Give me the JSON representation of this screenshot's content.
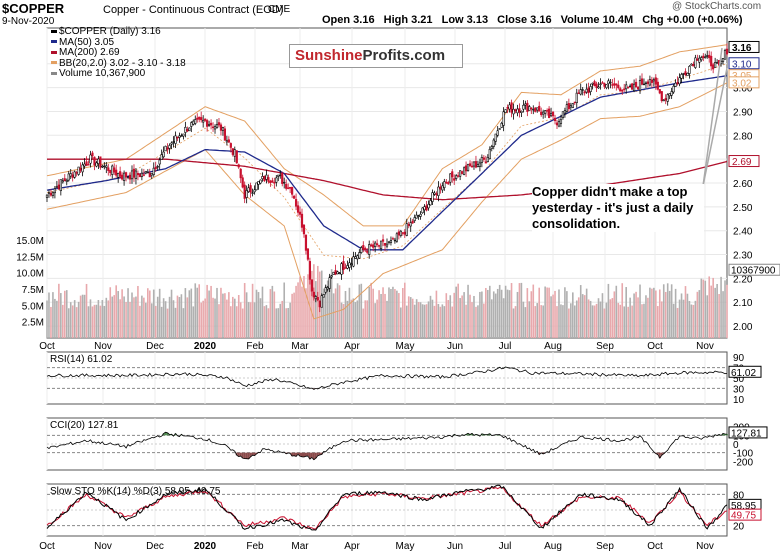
{
  "header": {
    "symbol": "$COPPER",
    "description": "Copper - Continuous Contract (EOD)",
    "exchange": "CME",
    "date": "9-Nov-2020",
    "ohlc": {
      "open": "Open 3.16",
      "high": "High 3.21",
      "low": "Low 3.13",
      "close": "Close 3.16",
      "volume": "Volume 10.4M",
      "change": "Chg +0.00 (+0.06%)"
    },
    "watermark": "@ StockCharts.com"
  },
  "legend": [
    {
      "text": "$COPPER (Daily) 3.16",
      "color": "#000000"
    },
    {
      "text": "MA(50) 3.05",
      "color": "#1f2a8c"
    },
    {
      "text": "MA(200) 2.69",
      "color": "#b0102c"
    },
    {
      "text": "BB(20,2.0) 3.02 - 3.10 - 3.18",
      "color": "#e3a062"
    },
    {
      "text": "Volume 10,367,900",
      "color": "#888888"
    }
  ],
  "logo": {
    "part1": "Sunshine",
    "part2": "Profits.com"
  },
  "annotation": "Copper didn't make a top yesterday - it's just a daily consolidation.",
  "colors": {
    "up": "#000000",
    "down": "#c8102e",
    "ma50": "#1f2a8c",
    "ma200": "#b0102c",
    "bb": "#e3a062",
    "vol_up": "#b0b0b0",
    "vol_down": "#e8a8ac",
    "osc_pos": "#4f8a4f",
    "osc_neg": "#8a4a4a"
  },
  "chart_data": [
    {
      "type": "candlestick",
      "title": "$COPPER (Daily) 3.16",
      "x_ticks": [
        "Oct",
        "Nov",
        "Dec",
        "2020",
        "Feb",
        "Mar",
        "Apr",
        "May",
        "Jun",
        "Jul",
        "Aug",
        "Sep",
        "Oct",
        "Nov"
      ],
      "y_ticks": [
        "3.10",
        "3.00",
        "2.90",
        "2.80",
        "2.70",
        "2.60",
        "2.50",
        "2.40",
        "2.30",
        "2.20",
        "2.10",
        "2.00"
      ],
      "ylim": [
        1.95,
        3.25
      ],
      "price_labels": [
        "3.16",
        "3.10",
        "3.05",
        "3.02",
        "2.69"
      ],
      "price_path": [
        [
          0,
          2.55
        ],
        [
          10,
          2.62
        ],
        [
          22,
          2.7
        ],
        [
          38,
          2.63
        ],
        [
          52,
          2.64
        ],
        [
          62,
          2.76
        ],
        [
          72,
          2.84
        ],
        [
          80,
          2.86
        ],
        [
          88,
          2.83
        ],
        [
          95,
          2.72
        ],
        [
          100,
          2.55
        ],
        [
          110,
          2.62
        ],
        [
          118,
          2.62
        ],
        [
          124,
          2.57
        ],
        [
          130,
          2.4
        ],
        [
          134,
          2.15
        ],
        [
          138,
          2.1
        ],
        [
          145,
          2.22
        ],
        [
          160,
          2.32
        ],
        [
          175,
          2.35
        ],
        [
          190,
          2.48
        ],
        [
          200,
          2.6
        ],
        [
          210,
          2.65
        ],
        [
          222,
          2.7
        ],
        [
          232,
          2.91
        ],
        [
          245,
          2.92
        ],
        [
          258,
          2.86
        ],
        [
          270,
          2.98
        ],
        [
          282,
          3.02
        ],
        [
          295,
          2.99
        ],
        [
          305,
          3.04
        ],
        [
          312,
          2.95
        ],
        [
          322,
          3.06
        ],
        [
          330,
          3.14
        ],
        [
          340,
          3.08
        ],
        [
          344,
          3.16
        ]
      ],
      "ma50_path": [
        [
          0,
          2.57
        ],
        [
          30,
          2.61
        ],
        [
          60,
          2.66
        ],
        [
          80,
          2.74
        ],
        [
          100,
          2.73
        ],
        [
          120,
          2.64
        ],
        [
          140,
          2.42
        ],
        [
          160,
          2.32
        ],
        [
          180,
          2.32
        ],
        [
          200,
          2.48
        ],
        [
          220,
          2.64
        ],
        [
          240,
          2.8
        ],
        [
          260,
          2.88
        ],
        [
          280,
          2.96
        ],
        [
          300,
          2.99
        ],
        [
          320,
          3.02
        ],
        [
          344,
          3.05
        ]
      ],
      "ma200_path": [
        [
          0,
          2.7
        ],
        [
          60,
          2.7
        ],
        [
          100,
          2.67
        ],
        [
          140,
          2.61
        ],
        [
          170,
          2.55
        ],
        [
          200,
          2.53
        ],
        [
          240,
          2.55
        ],
        [
          280,
          2.59
        ],
        [
          320,
          2.64
        ],
        [
          344,
          2.69
        ]
      ],
      "bb_upper_path": [
        [
          0,
          2.63
        ],
        [
          40,
          2.7
        ],
        [
          80,
          2.92
        ],
        [
          100,
          2.86
        ],
        [
          120,
          2.66
        ],
        [
          140,
          2.55
        ],
        [
          160,
          2.42
        ],
        [
          180,
          2.42
        ],
        [
          200,
          2.66
        ],
        [
          220,
          2.76
        ],
        [
          240,
          2.98
        ],
        [
          260,
          2.97
        ],
        [
          280,
          3.07
        ],
        [
          300,
          3.09
        ],
        [
          320,
          3.15
        ],
        [
          344,
          3.18
        ]
      ],
      "bb_lower_path": [
        [
          0,
          2.49
        ],
        [
          40,
          2.56
        ],
        [
          80,
          2.74
        ],
        [
          100,
          2.55
        ],
        [
          120,
          2.42
        ],
        [
          135,
          2.03
        ],
        [
          150,
          2.07
        ],
        [
          170,
          2.22
        ],
        [
          200,
          2.32
        ],
        [
          220,
          2.52
        ],
        [
          240,
          2.7
        ],
        [
          260,
          2.78
        ],
        [
          280,
          2.87
        ],
        [
          300,
          2.88
        ],
        [
          320,
          2.92
        ],
        [
          344,
          3.02
        ]
      ],
      "volume_ticks": [
        "15.0M",
        "12.5M",
        "10.0M",
        "7.5M",
        "5.0M",
        "2.5M"
      ],
      "volume_last": "10367900"
    },
    {
      "type": "line",
      "title": "RSI(14) 61.02",
      "ylim": [
        0,
        100
      ],
      "y_ticks": [
        "90",
        "70",
        "50",
        "30",
        "10"
      ],
      "reference_lines": [
        70,
        30
      ],
      "last_value": "61.02",
      "path": [
        [
          0,
          55
        ],
        [
          40,
          55
        ],
        [
          70,
          58
        ],
        [
          90,
          52
        ],
        [
          100,
          35
        ],
        [
          115,
          48
        ],
        [
          135,
          28
        ],
        [
          150,
          42
        ],
        [
          170,
          55
        ],
        [
          200,
          52
        ],
        [
          220,
          62
        ],
        [
          232,
          70
        ],
        [
          245,
          60
        ],
        [
          270,
          58
        ],
        [
          300,
          54
        ],
        [
          320,
          60
        ],
        [
          344,
          61.02
        ]
      ]
    },
    {
      "type": "line",
      "title": "CCI(20) 127.81",
      "ylim": [
        -300,
        300
      ],
      "y_ticks": [
        "200",
        "100",
        "0",
        "-100",
        "-200"
      ],
      "reference_lines": [
        100,
        -100
      ],
      "last_value": "127.81",
      "path": [
        [
          0,
          -50
        ],
        [
          20,
          40
        ],
        [
          40,
          -30
        ],
        [
          60,
          120
        ],
        [
          80,
          60
        ],
        [
          90,
          -20
        ],
        [
          100,
          -180
        ],
        [
          110,
          -60
        ],
        [
          130,
          -150
        ],
        [
          135,
          -170
        ],
        [
          150,
          40
        ],
        [
          170,
          50
        ],
        [
          200,
          80
        ],
        [
          210,
          110
        ],
        [
          230,
          100
        ],
        [
          250,
          -120
        ],
        [
          270,
          80
        ],
        [
          290,
          40
        ],
        [
          300,
          80
        ],
        [
          310,
          -150
        ],
        [
          320,
          90
        ],
        [
          330,
          60
        ],
        [
          344,
          127.81
        ]
      ]
    },
    {
      "type": "line",
      "title": "Slow STO %K(14) %D(3) 58.95, 49.75",
      "ylim": [
        0,
        100
      ],
      "y_ticks": [
        "80",
        "50",
        "20"
      ],
      "reference_lines": [
        80,
        20
      ],
      "last_values": [
        "58.95",
        "49.75"
      ],
      "k_path": [
        [
          0,
          15
        ],
        [
          20,
          85
        ],
        [
          40,
          30
        ],
        [
          60,
          80
        ],
        [
          80,
          90
        ],
        [
          100,
          15
        ],
        [
          120,
          30
        ],
        [
          135,
          8
        ],
        [
          150,
          80
        ],
        [
          170,
          85
        ],
        [
          190,
          70
        ],
        [
          210,
          85
        ],
        [
          230,
          95
        ],
        [
          250,
          15
        ],
        [
          270,
          80
        ],
        [
          290,
          70
        ],
        [
          305,
          20
        ],
        [
          320,
          90
        ],
        [
          334,
          15
        ],
        [
          344,
          58.95
        ]
      ],
      "d_path": [
        [
          0,
          20
        ],
        [
          20,
          80
        ],
        [
          40,
          35
        ],
        [
          60,
          75
        ],
        [
          80,
          88
        ],
        [
          100,
          20
        ],
        [
          120,
          35
        ],
        [
          135,
          12
        ],
        [
          150,
          75
        ],
        [
          170,
          82
        ],
        [
          190,
          72
        ],
        [
          210,
          82
        ],
        [
          230,
          92
        ],
        [
          250,
          20
        ],
        [
          270,
          75
        ],
        [
          290,
          72
        ],
        [
          305,
          25
        ],
        [
          320,
          85
        ],
        [
          334,
          20
        ],
        [
          344,
          49.75
        ]
      ]
    }
  ]
}
